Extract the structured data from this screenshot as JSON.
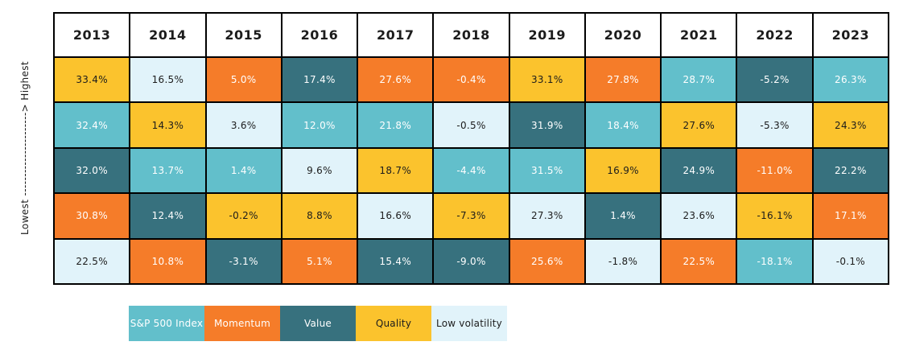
{
  "chart_data": {
    "type": "heatmap",
    "description": "Annual factor returns ranked highest to lowest per year",
    "y_axis_label": "Lowest ----------------------> Highest",
    "columns": [
      "2013",
      "2014",
      "2015",
      "2016",
      "2017",
      "2018",
      "2019",
      "2020",
      "2021",
      "2022",
      "2023"
    ],
    "legend": [
      {
        "key": "sp500",
        "label": "S&P 500 Index",
        "color": "#62BFCB",
        "text_color": "#ffffff"
      },
      {
        "key": "momentum",
        "label": "Momentum",
        "color": "#F57C29",
        "text_color": "#ffffff"
      },
      {
        "key": "value",
        "label": "Value",
        "color": "#37717E",
        "text_color": "#ffffff"
      },
      {
        "key": "quality",
        "label": "Quality",
        "color": "#FBC32D",
        "text_color": "#1c1c1c"
      },
      {
        "key": "lowvol",
        "label": "Low volatility",
        "color": "#E1F3FA",
        "text_color": "#1c1c1c"
      }
    ],
    "rows": [
      [
        {
          "v": "33.4%",
          "k": "quality"
        },
        {
          "v": "16.5%",
          "k": "lowvol"
        },
        {
          "v": "5.0%",
          "k": "momentum"
        },
        {
          "v": "17.4%",
          "k": "value"
        },
        {
          "v": "27.6%",
          "k": "momentum"
        },
        {
          "v": "-0.4%",
          "k": "momentum"
        },
        {
          "v": "33.1%",
          "k": "quality"
        },
        {
          "v": "27.8%",
          "k": "momentum"
        },
        {
          "v": "28.7%",
          "k": "sp500"
        },
        {
          "v": "-5.2%",
          "k": "value"
        },
        {
          "v": "26.3%",
          "k": "sp500"
        }
      ],
      [
        {
          "v": "32.4%",
          "k": "sp500"
        },
        {
          "v": "14.3%",
          "k": "quality"
        },
        {
          "v": "3.6%",
          "k": "lowvol"
        },
        {
          "v": "12.0%",
          "k": "sp500"
        },
        {
          "v": "21.8%",
          "k": "sp500"
        },
        {
          "v": "-0.5%",
          "k": "lowvol"
        },
        {
          "v": "31.9%",
          "k": "value"
        },
        {
          "v": "18.4%",
          "k": "sp500"
        },
        {
          "v": "27.6%",
          "k": "quality"
        },
        {
          "v": "-5.3%",
          "k": "lowvol"
        },
        {
          "v": "24.3%",
          "k": "quality"
        }
      ],
      [
        {
          "v": "32.0%",
          "k": "value"
        },
        {
          "v": "13.7%",
          "k": "sp500"
        },
        {
          "v": "1.4%",
          "k": "sp500"
        },
        {
          "v": "9.6%",
          "k": "lowvol"
        },
        {
          "v": "18.7%",
          "k": "quality"
        },
        {
          "v": "-4.4%",
          "k": "sp500"
        },
        {
          "v": "31.5%",
          "k": "sp500"
        },
        {
          "v": "16.9%",
          "k": "quality"
        },
        {
          "v": "24.9%",
          "k": "value"
        },
        {
          "v": "-11.0%",
          "k": "momentum"
        },
        {
          "v": "22.2%",
          "k": "value"
        }
      ],
      [
        {
          "v": "30.8%",
          "k": "momentum"
        },
        {
          "v": "12.4%",
          "k": "value"
        },
        {
          "v": "-0.2%",
          "k": "quality"
        },
        {
          "v": "8.8%",
          "k": "quality"
        },
        {
          "v": "16.6%",
          "k": "lowvol"
        },
        {
          "v": "-7.3%",
          "k": "quality"
        },
        {
          "v": "27.3%",
          "k": "lowvol"
        },
        {
          "v": "1.4%",
          "k": "value"
        },
        {
          "v": "23.6%",
          "k": "lowvol"
        },
        {
          "v": "-16.1%",
          "k": "quality"
        },
        {
          "v": "17.1%",
          "k": "momentum"
        }
      ],
      [
        {
          "v": "22.5%",
          "k": "lowvol"
        },
        {
          "v": "10.8%",
          "k": "momentum"
        },
        {
          "v": "-3.1%",
          "k": "value"
        },
        {
          "v": "5.1%",
          "k": "momentum"
        },
        {
          "v": "15.4%",
          "k": "value"
        },
        {
          "v": "-9.0%",
          "k": "value"
        },
        {
          "v": "25.6%",
          "k": "momentum"
        },
        {
          "v": "-1.8%",
          "k": "lowvol"
        },
        {
          "v": "22.5%",
          "k": "momentum"
        },
        {
          "v": "-18.1%",
          "k": "sp500"
        },
        {
          "v": "-0.1%",
          "k": "lowvol"
        }
      ]
    ]
  }
}
